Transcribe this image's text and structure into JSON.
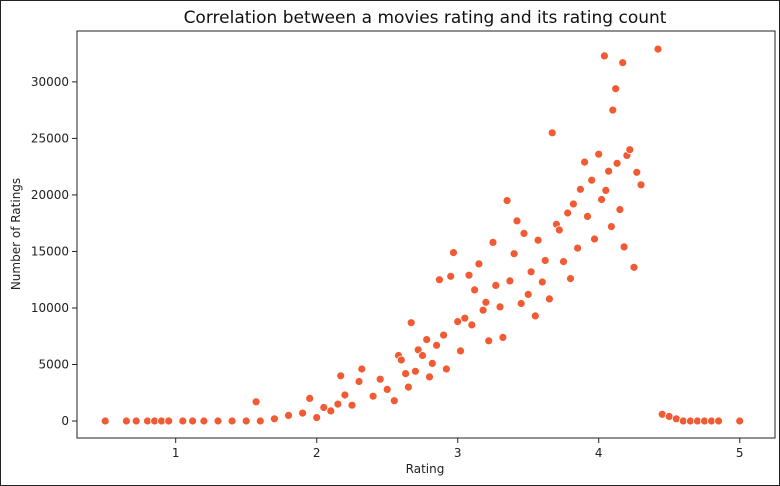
{
  "chart_data": {
    "type": "scatter",
    "title": "Correlation between a movies rating and its rating count",
    "xlabel": "Rating",
    "ylabel": "Number of Ratings",
    "xlim": [
      0.3,
      5.25
    ],
    "ylim": [
      -1500,
      34500
    ],
    "xticks": [
      1,
      2,
      3,
      4,
      5
    ],
    "yticks": [
      0,
      5000,
      10000,
      15000,
      20000,
      25000,
      30000
    ],
    "grid": false,
    "legend": "none",
    "marker_color": "#f15a32",
    "marker_edge": "#ffffff",
    "points": [
      [
        0.5,
        0
      ],
      [
        0.65,
        0
      ],
      [
        0.72,
        0
      ],
      [
        0.8,
        0
      ],
      [
        0.85,
        0
      ],
      [
        0.9,
        0
      ],
      [
        0.95,
        0
      ],
      [
        1.05,
        0
      ],
      [
        1.12,
        0
      ],
      [
        1.2,
        0
      ],
      [
        1.3,
        0
      ],
      [
        1.4,
        0
      ],
      [
        1.5,
        0
      ],
      [
        1.57,
        1700
      ],
      [
        1.6,
        0
      ],
      [
        1.7,
        200
      ],
      [
        1.8,
        500
      ],
      [
        1.9,
        700
      ],
      [
        1.95,
        2000
      ],
      [
        2.0,
        300
      ],
      [
        2.05,
        1200
      ],
      [
        2.1,
        900
      ],
      [
        2.15,
        1500
      ],
      [
        2.17,
        4000
      ],
      [
        2.2,
        2300
      ],
      [
        2.25,
        1400
      ],
      [
        2.3,
        3500
      ],
      [
        2.32,
        4600
      ],
      [
        2.4,
        2200
      ],
      [
        2.45,
        3700
      ],
      [
        2.5,
        2800
      ],
      [
        2.55,
        1800
      ],
      [
        2.58,
        5800
      ],
      [
        2.6,
        5400
      ],
      [
        2.63,
        4200
      ],
      [
        2.65,
        3000
      ],
      [
        2.67,
        8700
      ],
      [
        2.7,
        4400
      ],
      [
        2.72,
        6300
      ],
      [
        2.75,
        5800
      ],
      [
        2.78,
        7200
      ],
      [
        2.8,
        3900
      ],
      [
        2.82,
        5100
      ],
      [
        2.85,
        6700
      ],
      [
        2.87,
        12500
      ],
      [
        2.9,
        7600
      ],
      [
        2.92,
        4600
      ],
      [
        2.95,
        12800
      ],
      [
        2.97,
        14900
      ],
      [
        3.0,
        8800
      ],
      [
        3.02,
        6200
      ],
      [
        3.05,
        9100
      ],
      [
        3.08,
        12900
      ],
      [
        3.1,
        8500
      ],
      [
        3.12,
        11600
      ],
      [
        3.15,
        13900
      ],
      [
        3.18,
        9800
      ],
      [
        3.2,
        10500
      ],
      [
        3.22,
        7100
      ],
      [
        3.25,
        15800
      ],
      [
        3.27,
        12000
      ],
      [
        3.3,
        10100
      ],
      [
        3.32,
        7400
      ],
      [
        3.35,
        19500
      ],
      [
        3.37,
        12400
      ],
      [
        3.4,
        14800
      ],
      [
        3.42,
        17700
      ],
      [
        3.45,
        10400
      ],
      [
        3.47,
        16600
      ],
      [
        3.5,
        11200
      ],
      [
        3.52,
        13200
      ],
      [
        3.55,
        9300
      ],
      [
        3.57,
        16000
      ],
      [
        3.6,
        12300
      ],
      [
        3.62,
        14200
      ],
      [
        3.65,
        10800
      ],
      [
        3.67,
        25500
      ],
      [
        3.7,
        17400
      ],
      [
        3.72,
        16900
      ],
      [
        3.75,
        14100
      ],
      [
        3.78,
        18400
      ],
      [
        3.8,
        12600
      ],
      [
        3.82,
        19200
      ],
      [
        3.85,
        15300
      ],
      [
        3.87,
        20500
      ],
      [
        3.9,
        22900
      ],
      [
        3.92,
        18100
      ],
      [
        3.95,
        21300
      ],
      [
        3.97,
        16100
      ],
      [
        4.0,
        23600
      ],
      [
        4.02,
        19600
      ],
      [
        4.04,
        32300
      ],
      [
        4.05,
        20400
      ],
      [
        4.07,
        22100
      ],
      [
        4.09,
        17200
      ],
      [
        4.1,
        27500
      ],
      [
        4.12,
        29400
      ],
      [
        4.13,
        22800
      ],
      [
        4.15,
        18700
      ],
      [
        4.17,
        31700
      ],
      [
        4.18,
        15400
      ],
      [
        4.2,
        23500
      ],
      [
        4.22,
        24000
      ],
      [
        4.25,
        13600
      ],
      [
        4.27,
        22000
      ],
      [
        4.3,
        20900
      ],
      [
        4.42,
        32900
      ],
      [
        4.45,
        600
      ],
      [
        4.5,
        400
      ],
      [
        4.55,
        200
      ],
      [
        4.6,
        0
      ],
      [
        4.65,
        0
      ],
      [
        4.7,
        0
      ],
      [
        4.75,
        0
      ],
      [
        4.8,
        0
      ],
      [
        4.85,
        0
      ],
      [
        5.0,
        0
      ]
    ]
  }
}
